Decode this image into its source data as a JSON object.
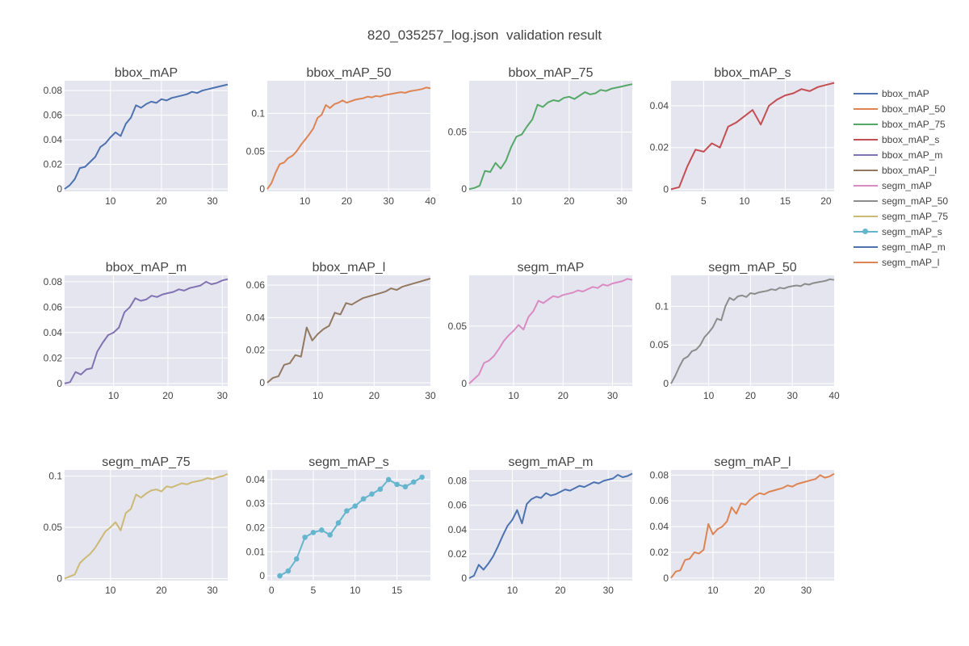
{
  "page": {
    "title": "820_035257_log.json  validation result"
  },
  "chart_data": [
    {
      "type": "line",
      "title": "bbox_mAP",
      "color": "#4c72b0",
      "markers": false,
      "xlim": [
        1,
        33
      ],
      "ylim": [
        -0.002,
        0.088
      ],
      "xticks": [
        10,
        20,
        30
      ],
      "xtick_labels": [
        "10",
        "20",
        "30"
      ],
      "yticks": [
        0,
        0.02,
        0.04,
        0.06,
        0.08
      ],
      "ytick_labels": [
        "0",
        "0.02",
        "0.04",
        "0.06",
        "0.08"
      ],
      "x": [
        1,
        2,
        3,
        4,
        5,
        6,
        7,
        8,
        9,
        10,
        11,
        12,
        13,
        14,
        15,
        16,
        17,
        18,
        19,
        20,
        21,
        22,
        23,
        24,
        25,
        26,
        27,
        28,
        29,
        30,
        31,
        32,
        33
      ],
      "y": [
        0.0,
        0.003,
        0.008,
        0.017,
        0.018,
        0.022,
        0.026,
        0.034,
        0.037,
        0.042,
        0.046,
        0.043,
        0.053,
        0.058,
        0.068,
        0.066,
        0.069,
        0.071,
        0.07,
        0.073,
        0.072,
        0.074,
        0.075,
        0.076,
        0.077,
        0.079,
        0.078,
        0.08,
        0.081,
        0.082,
        0.083,
        0.084,
        0.085
      ]
    },
    {
      "type": "line",
      "title": "bbox_mAP_50",
      "color": "#dd8452",
      "markers": false,
      "xlim": [
        1,
        40
      ],
      "ylim": [
        -0.003,
        0.143
      ],
      "xticks": [
        10,
        20,
        30,
        40
      ],
      "xtick_labels": [
        "10",
        "20",
        "30",
        "40"
      ],
      "yticks": [
        0,
        0.05,
        0.1
      ],
      "ytick_labels": [
        "0",
        "0.05",
        "0.1"
      ],
      "x": [
        1,
        2,
        3,
        4,
        5,
        6,
        7,
        8,
        9,
        10,
        11,
        12,
        13,
        14,
        15,
        16,
        17,
        18,
        19,
        20,
        21,
        22,
        23,
        24,
        25,
        26,
        27,
        28,
        29,
        30,
        31,
        32,
        33,
        34,
        35,
        36,
        37,
        38,
        39,
        40
      ],
      "y": [
        0.0,
        0.008,
        0.022,
        0.033,
        0.035,
        0.041,
        0.044,
        0.05,
        0.058,
        0.065,
        0.072,
        0.08,
        0.094,
        0.098,
        0.111,
        0.107,
        0.112,
        0.114,
        0.117,
        0.114,
        0.116,
        0.118,
        0.119,
        0.12,
        0.122,
        0.121,
        0.123,
        0.122,
        0.124,
        0.125,
        0.126,
        0.127,
        0.128,
        0.127,
        0.129,
        0.13,
        0.131,
        0.132,
        0.134,
        0.133
      ]
    },
    {
      "type": "line",
      "title": "bbox_mAP_75",
      "color": "#55a868",
      "markers": false,
      "xlim": [
        1,
        32
      ],
      "ylim": [
        -0.002,
        0.095
      ],
      "xticks": [
        10,
        20,
        30
      ],
      "xtick_labels": [
        "10",
        "20",
        "30"
      ],
      "yticks": [
        0,
        0.05
      ],
      "ytick_labels": [
        "0",
        "0.05"
      ],
      "x": [
        1,
        2,
        3,
        4,
        5,
        6,
        7,
        8,
        9,
        10,
        11,
        12,
        13,
        14,
        15,
        16,
        17,
        18,
        19,
        20,
        21,
        22,
        23,
        24,
        25,
        26,
        27,
        28,
        29,
        30,
        31,
        32
      ],
      "y": [
        0.0,
        0.001,
        0.003,
        0.016,
        0.015,
        0.023,
        0.018,
        0.025,
        0.037,
        0.046,
        0.048,
        0.055,
        0.061,
        0.074,
        0.072,
        0.076,
        0.078,
        0.077,
        0.08,
        0.081,
        0.079,
        0.082,
        0.085,
        0.083,
        0.084,
        0.087,
        0.086,
        0.088,
        0.089,
        0.09,
        0.091,
        0.092
      ]
    },
    {
      "type": "line",
      "title": "bbox_mAP_s",
      "color": "#c44e52",
      "markers": false,
      "xlim": [
        1,
        21
      ],
      "ylim": [
        -0.001,
        0.052
      ],
      "xticks": [
        5,
        10,
        15,
        20
      ],
      "xtick_labels": [
        "5",
        "10",
        "15",
        "20"
      ],
      "yticks": [
        0,
        0.02,
        0.04
      ],
      "ytick_labels": [
        "0",
        "0.02",
        "0.04"
      ],
      "x": [
        1,
        2,
        3,
        4,
        5,
        6,
        7,
        8,
        9,
        10,
        11,
        12,
        13,
        14,
        15,
        16,
        17,
        18,
        19,
        20,
        21
      ],
      "y": [
        0.0,
        0.001,
        0.011,
        0.019,
        0.018,
        0.022,
        0.02,
        0.03,
        0.032,
        0.035,
        0.038,
        0.031,
        0.04,
        0.043,
        0.045,
        0.046,
        0.048,
        0.047,
        0.049,
        0.05,
        0.051
      ]
    },
    {
      "type": "line",
      "title": "bbox_mAP_m",
      "color": "#8172b2",
      "markers": false,
      "xlim": [
        1,
        31
      ],
      "ylim": [
        -0.002,
        0.085
      ],
      "xticks": [
        10,
        20,
        30
      ],
      "xtick_labels": [
        "10",
        "20",
        "30"
      ],
      "yticks": [
        0,
        0.02,
        0.04,
        0.06,
        0.08
      ],
      "ytick_labels": [
        "0",
        "0.02",
        "0.04",
        "0.06",
        "0.08"
      ],
      "x": [
        1,
        2,
        3,
        4,
        5,
        6,
        7,
        8,
        9,
        10,
        11,
        12,
        13,
        14,
        15,
        16,
        17,
        18,
        19,
        20,
        21,
        22,
        23,
        24,
        25,
        26,
        27,
        28,
        29,
        30,
        31
      ],
      "y": [
        0.0,
        0.001,
        0.009,
        0.007,
        0.011,
        0.012,
        0.025,
        0.032,
        0.038,
        0.04,
        0.044,
        0.056,
        0.06,
        0.067,
        0.065,
        0.066,
        0.069,
        0.068,
        0.07,
        0.071,
        0.072,
        0.074,
        0.073,
        0.075,
        0.076,
        0.077,
        0.08,
        0.078,
        0.079,
        0.081,
        0.082
      ]
    },
    {
      "type": "line",
      "title": "bbox_mAP_l",
      "color": "#937860",
      "markers": false,
      "xlim": [
        1,
        30
      ],
      "ylim": [
        -0.002,
        0.066
      ],
      "xticks": [
        10,
        20,
        30
      ],
      "xtick_labels": [
        "10",
        "20",
        "30"
      ],
      "yticks": [
        0,
        0.02,
        0.04,
        0.06
      ],
      "ytick_labels": [
        "0",
        "0.02",
        "0.04",
        "0.06"
      ],
      "x": [
        1,
        2,
        3,
        4,
        5,
        6,
        7,
        8,
        9,
        10,
        11,
        12,
        13,
        14,
        15,
        16,
        17,
        18,
        19,
        20,
        21,
        22,
        23,
        24,
        25,
        26,
        27,
        28,
        29,
        30
      ],
      "y": [
        0.0,
        0.003,
        0.004,
        0.011,
        0.012,
        0.017,
        0.016,
        0.034,
        0.026,
        0.03,
        0.033,
        0.035,
        0.043,
        0.042,
        0.049,
        0.048,
        0.05,
        0.052,
        0.053,
        0.054,
        0.055,
        0.056,
        0.058,
        0.057,
        0.059,
        0.06,
        0.061,
        0.062,
        0.063,
        0.064
      ]
    },
    {
      "type": "line",
      "title": "segm_mAP",
      "color": "#da8bc3",
      "markers": false,
      "xlim": [
        1,
        34
      ],
      "ylim": [
        -0.002,
        0.094
      ],
      "xticks": [
        10,
        20,
        30
      ],
      "xtick_labels": [
        "10",
        "20",
        "30"
      ],
      "yticks": [
        0,
        0.05
      ],
      "ytick_labels": [
        "0",
        "0.05"
      ],
      "x": [
        1,
        2,
        3,
        4,
        5,
        6,
        7,
        8,
        9,
        10,
        11,
        12,
        13,
        14,
        15,
        16,
        17,
        18,
        19,
        20,
        21,
        22,
        23,
        24,
        25,
        26,
        27,
        28,
        29,
        30,
        31,
        32,
        33,
        34
      ],
      "y": [
        0.0,
        0.004,
        0.008,
        0.018,
        0.02,
        0.024,
        0.03,
        0.037,
        0.042,
        0.046,
        0.051,
        0.047,
        0.058,
        0.063,
        0.072,
        0.07,
        0.073,
        0.076,
        0.075,
        0.077,
        0.078,
        0.079,
        0.081,
        0.08,
        0.082,
        0.084,
        0.083,
        0.086,
        0.085,
        0.087,
        0.088,
        0.089,
        0.091,
        0.09
      ]
    },
    {
      "type": "line",
      "title": "segm_mAP_50",
      "color": "#8c8c8c",
      "markers": false,
      "xlim": [
        1,
        40
      ],
      "ylim": [
        -0.003,
        0.14
      ],
      "xticks": [
        10,
        20,
        30,
        40
      ],
      "xtick_labels": [
        "10",
        "20",
        "30",
        "40"
      ],
      "yticks": [
        0,
        0.05,
        0.1
      ],
      "ytick_labels": [
        "0",
        "0.05",
        "0.1"
      ],
      "x": [
        1,
        2,
        3,
        4,
        5,
        6,
        7,
        8,
        9,
        10,
        11,
        12,
        13,
        14,
        15,
        16,
        17,
        18,
        19,
        20,
        21,
        22,
        23,
        24,
        25,
        26,
        27,
        28,
        29,
        30,
        31,
        32,
        33,
        34,
        35,
        36,
        37,
        38,
        39,
        40
      ],
      "y": [
        0.0,
        0.01,
        0.022,
        0.032,
        0.035,
        0.042,
        0.044,
        0.05,
        0.06,
        0.066,
        0.073,
        0.084,
        0.082,
        0.1,
        0.111,
        0.108,
        0.113,
        0.114,
        0.112,
        0.117,
        0.116,
        0.118,
        0.119,
        0.12,
        0.122,
        0.121,
        0.124,
        0.123,
        0.125,
        0.126,
        0.127,
        0.126,
        0.129,
        0.128,
        0.13,
        0.131,
        0.132,
        0.133,
        0.135,
        0.134
      ]
    },
    {
      "type": "line",
      "title": "segm_mAP_75",
      "color": "#ccb974",
      "markers": false,
      "xlim": [
        1,
        33
      ],
      "ylim": [
        -0.002,
        0.106
      ],
      "xticks": [
        10,
        20,
        30
      ],
      "xtick_labels": [
        "10",
        "20",
        "30"
      ],
      "yticks": [
        0,
        0.05,
        0.1
      ],
      "ytick_labels": [
        "0",
        "0.05",
        "0.1"
      ],
      "x": [
        1,
        2,
        3,
        4,
        5,
        6,
        7,
        8,
        9,
        10,
        11,
        12,
        13,
        14,
        15,
        16,
        17,
        18,
        19,
        20,
        21,
        22,
        23,
        24,
        25,
        26,
        27,
        28,
        29,
        30,
        31,
        32,
        33
      ],
      "y": [
        0.0,
        0.002,
        0.004,
        0.015,
        0.02,
        0.024,
        0.03,
        0.038,
        0.046,
        0.05,
        0.055,
        0.047,
        0.064,
        0.068,
        0.082,
        0.079,
        0.083,
        0.086,
        0.087,
        0.085,
        0.09,
        0.089,
        0.091,
        0.093,
        0.092,
        0.094,
        0.095,
        0.096,
        0.098,
        0.097,
        0.099,
        0.1,
        0.102
      ]
    },
    {
      "type": "line",
      "title": "segm_mAP_s",
      "color": "#64b5cd",
      "markers": true,
      "xlim": [
        -0.5,
        19
      ],
      "ylim": [
        -0.002,
        0.044
      ],
      "xticks": [
        0,
        5,
        10,
        15
      ],
      "xtick_labels": [
        "0",
        "5",
        "10",
        "15"
      ],
      "yticks": [
        0,
        0.01,
        0.02,
        0.03,
        0.04
      ],
      "ytick_labels": [
        "0",
        "0.01",
        "0.02",
        "0.03",
        "0.04"
      ],
      "x": [
        1,
        2,
        3,
        4,
        5,
        6,
        7,
        8,
        9,
        10,
        11,
        12,
        13,
        14,
        15,
        16,
        17,
        18
      ],
      "y": [
        0.0,
        0.002,
        0.007,
        0.016,
        0.018,
        0.019,
        0.017,
        0.022,
        0.027,
        0.029,
        0.032,
        0.034,
        0.036,
        0.04,
        0.038,
        0.037,
        0.039,
        0.041
      ]
    },
    {
      "type": "line",
      "title": "segm_mAP_m",
      "color": "#4c72b0",
      "markers": false,
      "xlim": [
        1,
        35
      ],
      "ylim": [
        -0.002,
        0.089
      ],
      "xticks": [
        10,
        20,
        30
      ],
      "xtick_labels": [
        "10",
        "20",
        "30"
      ],
      "yticks": [
        0,
        0.02,
        0.04,
        0.06,
        0.08
      ],
      "ytick_labels": [
        "0",
        "0.02",
        "0.04",
        "0.06",
        "0.08"
      ],
      "x": [
        1,
        2,
        3,
        4,
        5,
        6,
        7,
        8,
        9,
        10,
        11,
        12,
        13,
        14,
        15,
        16,
        17,
        18,
        19,
        20,
        21,
        22,
        23,
        24,
        25,
        26,
        27,
        28,
        29,
        30,
        31,
        32,
        33,
        34,
        35
      ],
      "y": [
        0.0,
        0.002,
        0.011,
        0.007,
        0.012,
        0.018,
        0.026,
        0.035,
        0.043,
        0.048,
        0.056,
        0.045,
        0.061,
        0.065,
        0.067,
        0.066,
        0.07,
        0.068,
        0.069,
        0.071,
        0.073,
        0.072,
        0.074,
        0.076,
        0.075,
        0.077,
        0.079,
        0.078,
        0.08,
        0.081,
        0.082,
        0.085,
        0.083,
        0.084,
        0.086
      ]
    },
    {
      "type": "line",
      "title": "segm_mAP_l",
      "color": "#dd8452",
      "markers": false,
      "xlim": [
        1,
        36
      ],
      "ylim": [
        -0.002,
        0.084
      ],
      "xticks": [
        10,
        20,
        30
      ],
      "xtick_labels": [
        "10",
        "20",
        "30"
      ],
      "yticks": [
        0,
        0.02,
        0.04,
        0.06,
        0.08
      ],
      "ytick_labels": [
        "0",
        "0.02",
        "0.04",
        "0.06",
        "0.08"
      ],
      "x": [
        1,
        2,
        3,
        4,
        5,
        6,
        7,
        8,
        9,
        10,
        11,
        12,
        13,
        14,
        15,
        16,
        17,
        18,
        19,
        20,
        21,
        22,
        23,
        24,
        25,
        26,
        27,
        28,
        29,
        30,
        31,
        32,
        33,
        34,
        35,
        36
      ],
      "y": [
        0.0,
        0.005,
        0.006,
        0.014,
        0.015,
        0.02,
        0.019,
        0.022,
        0.042,
        0.034,
        0.038,
        0.04,
        0.044,
        0.055,
        0.05,
        0.058,
        0.057,
        0.061,
        0.064,
        0.066,
        0.065,
        0.067,
        0.068,
        0.069,
        0.07,
        0.072,
        0.071,
        0.073,
        0.074,
        0.075,
        0.076,
        0.077,
        0.08,
        0.078,
        0.079,
        0.081
      ]
    }
  ],
  "legend": [
    {
      "label": "bbox_mAP",
      "color": "#4c72b0",
      "marker": false
    },
    {
      "label": "bbox_mAP_50",
      "color": "#dd8452",
      "marker": false
    },
    {
      "label": "bbox_mAP_75",
      "color": "#55a868",
      "marker": false
    },
    {
      "label": "bbox_mAP_s",
      "color": "#c44e52",
      "marker": false
    },
    {
      "label": "bbox_mAP_m",
      "color": "#8172b2",
      "marker": false
    },
    {
      "label": "bbox_mAP_l",
      "color": "#937860",
      "marker": false
    },
    {
      "label": "segm_mAP",
      "color": "#da8bc3",
      "marker": false
    },
    {
      "label": "segm_mAP_50",
      "color": "#8c8c8c",
      "marker": false
    },
    {
      "label": "segm_mAP_75",
      "color": "#ccb974",
      "marker": false
    },
    {
      "label": "segm_mAP_s",
      "color": "#64b5cd",
      "marker": true
    },
    {
      "label": "segm_mAP_m",
      "color": "#4c72b0",
      "marker": false
    },
    {
      "label": "segm_mAP_l",
      "color": "#dd8452",
      "marker": false
    }
  ],
  "style": {
    "plot_bg": "#e5e5ef",
    "grid_color": "#ffffff",
    "tick_color": "#444444"
  }
}
